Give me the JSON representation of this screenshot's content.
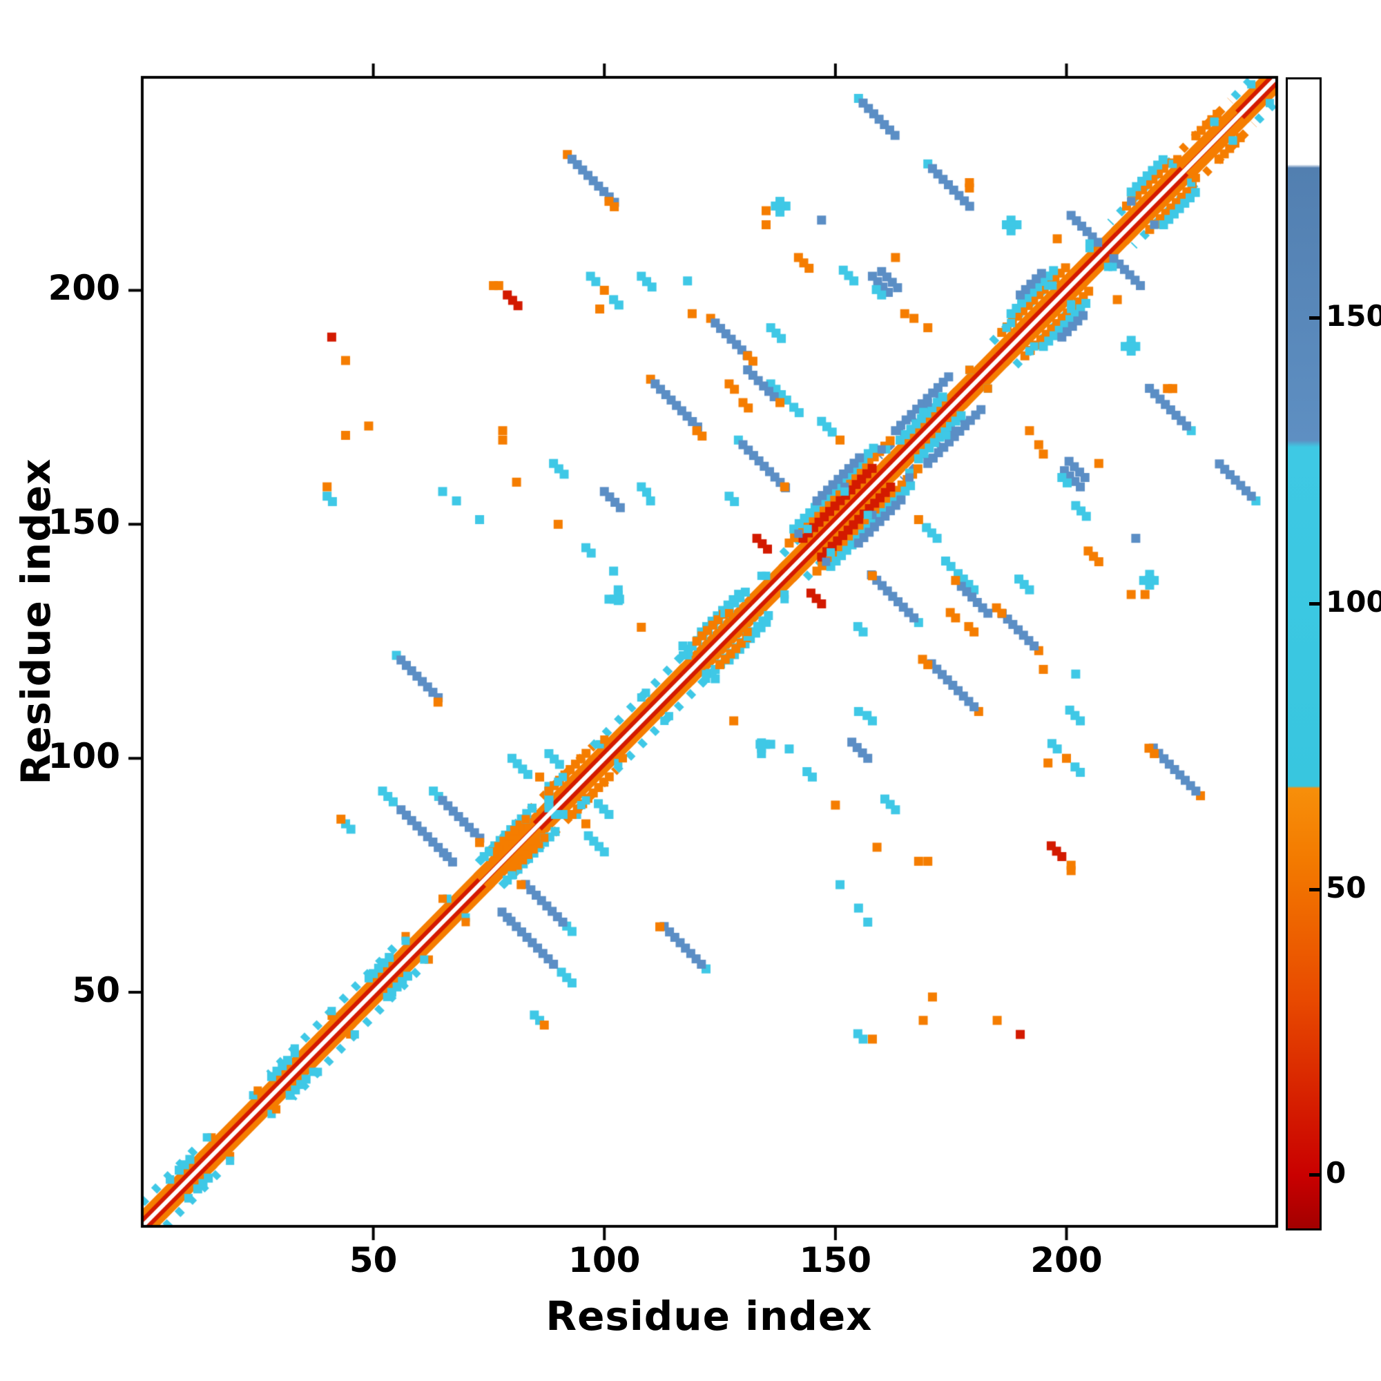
{
  "chart_data": {
    "type": "heatmap",
    "title": "",
    "xlabel": "Residue index",
    "ylabel": "Residue index",
    "x_ticks": [
      50,
      100,
      150,
      200
    ],
    "y_ticks": [
      50,
      100,
      150,
      200
    ],
    "x_range": [
      0,
      245
    ],
    "y_range": [
      0,
      245
    ],
    "grid": false,
    "symmetric": true,
    "legend_position": "right-colorbar",
    "palette": {
      "r": "#d31a00",
      "o": "#f57d00",
      "c": "#3fc8e6",
      "b": "#5b8ec5",
      "diag_center": "#ffffff"
    },
    "colorbar": {
      "ticks": [
        0,
        50,
        100,
        150
      ],
      "range": [
        -9,
        192
      ],
      "gradient_stops": [
        {
          "f": 0.0,
          "color": "#a30000"
        },
        {
          "f": 0.046,
          "color": "#c90000"
        },
        {
          "f": 0.2,
          "color": "#e84a00"
        },
        {
          "f": 0.32,
          "color": "#f37a00"
        },
        {
          "f": 0.383,
          "color": "#f78f0a"
        },
        {
          "f": 0.385,
          "color": "#38c6df"
        },
        {
          "f": 0.68,
          "color": "#3ec9e4"
        },
        {
          "f": 0.686,
          "color": "#5e8fc2"
        },
        {
          "f": 0.923,
          "color": "#527fb0"
        },
        {
          "f": 0.926,
          "color": "#ffffff"
        },
        {
          "f": 1.0,
          "color": "#ffffff"
        }
      ]
    },
    "diagonal_band": {
      "segments": [
        [
          1,
          14,
          "r",
          "o",
          "c"
        ],
        [
          14,
          30,
          "r",
          "o",
          null
        ],
        [
          30,
          44,
          "r",
          "o",
          "c"
        ],
        [
          44,
          58,
          "r",
          "o",
          "c"
        ],
        [
          58,
          74,
          "r",
          "o",
          null
        ],
        [
          74,
          86,
          "o",
          "o",
          "c"
        ],
        [
          86,
          100,
          "r",
          "o",
          "o"
        ],
        [
          100,
          118,
          "r",
          "o",
          "c"
        ],
        [
          118,
          133,
          "r",
          "o",
          "c"
        ],
        [
          133,
          140,
          "r",
          "o",
          null
        ],
        [
          140,
          162,
          "r",
          "o",
          "c"
        ],
        [
          162,
          177,
          "r",
          "o",
          "b"
        ],
        [
          177,
          186,
          "r",
          "o",
          null
        ],
        [
          186,
          202,
          "r",
          "o",
          "c"
        ],
        [
          202,
          212,
          "r",
          "o",
          null
        ],
        [
          212,
          226,
          "r",
          "o",
          "c"
        ],
        [
          226,
          238,
          "o",
          "o",
          "o"
        ],
        [
          238,
          245,
          "r",
          "o",
          "c"
        ]
      ],
      "flecks": [
        [
          6,
          4,
          "c"
        ],
        [
          10,
          -4,
          "c"
        ],
        [
          15,
          4,
          "o"
        ],
        [
          19,
          -5,
          "c"
        ],
        [
          24,
          4,
          "c"
        ],
        [
          29,
          -4,
          "o"
        ],
        [
          33,
          5,
          "c"
        ],
        [
          37,
          -4,
          "c"
        ],
        [
          41,
          4,
          "o"
        ],
        [
          46,
          -5,
          "c"
        ],
        [
          50,
          4,
          "c"
        ],
        [
          53,
          -4,
          "c"
        ],
        [
          57,
          5,
          "o"
        ],
        [
          61,
          -4,
          "c"
        ],
        [
          66,
          4,
          "c"
        ],
        [
          70,
          -5,
          "o"
        ],
        [
          75,
          5,
          "c"
        ],
        [
          79,
          -5,
          "c"
        ],
        [
          83,
          4,
          "c"
        ],
        [
          87,
          -4,
          "o"
        ],
        [
          91,
          5,
          "c"
        ],
        [
          95,
          -5,
          "c"
        ],
        [
          99,
          4,
          "c"
        ],
        [
          104,
          -4,
          "o"
        ],
        [
          109,
          5,
          "c"
        ],
        [
          113,
          -5,
          "c"
        ],
        [
          118,
          4,
          "c"
        ],
        [
          122,
          -5,
          "c"
        ],
        [
          126,
          5,
          "c"
        ],
        [
          131,
          -4,
          "o"
        ],
        [
          135,
          4,
          "c"
        ],
        [
          139,
          -5,
          "c"
        ],
        [
          144,
          5,
          "c"
        ],
        [
          148,
          -6,
          "b"
        ],
        [
          152,
          6,
          "b"
        ],
        [
          157,
          -5,
          "c"
        ],
        [
          161,
          5,
          "c"
        ],
        [
          166,
          -6,
          "b"
        ],
        [
          170,
          6,
          "b"
        ],
        [
          174,
          -5,
          "c"
        ],
        [
          179,
          4,
          "c"
        ],
        [
          183,
          -4,
          "o"
        ],
        [
          188,
          5,
          "c"
        ],
        [
          192,
          -5,
          "c"
        ],
        [
          196,
          5,
          "c"
        ],
        [
          201,
          -4,
          "c"
        ],
        [
          205,
          4,
          "c"
        ],
        [
          210,
          -5,
          "c"
        ],
        [
          214,
          5,
          "c"
        ],
        [
          219,
          -5,
          "b"
        ],
        [
          223,
          4,
          "c"
        ],
        [
          228,
          -4,
          "o"
        ],
        [
          232,
          4,
          "c"
        ],
        [
          236,
          -4,
          "c"
        ],
        [
          240,
          4,
          "c"
        ]
      ]
    },
    "contacts": [
      [
        92,
        229,
        1,
        "a",
        "o"
      ],
      [
        93,
        228,
        9,
        "a",
        "b"
      ],
      [
        101,
        219,
        2,
        "a",
        "o"
      ],
      [
        155,
        241,
        1,
        "a",
        "c"
      ],
      [
        156,
        240,
        7,
        "a",
        "b"
      ],
      [
        170,
        227,
        1,
        "a",
        "c"
      ],
      [
        171,
        226,
        8,
        "a",
        "b"
      ],
      [
        201,
        216,
        6,
        "a",
        "b"
      ],
      [
        198,
        211,
        1,
        "a",
        "o"
      ],
      [
        135,
        217,
        1,
        "a",
        "o"
      ],
      [
        135,
        214,
        1,
        "a",
        "o"
      ],
      [
        137,
        218,
        3,
        "h",
        "c"
      ],
      [
        138,
        219,
        3,
        "v",
        "c"
      ],
      [
        147,
        215,
        1,
        "a",
        "b"
      ],
      [
        163,
        207,
        1,
        "a",
        "o"
      ],
      [
        41,
        190,
        1,
        "a",
        "r"
      ],
      [
        44,
        185,
        1,
        "a",
        "o"
      ],
      [
        97,
        203,
        2,
        "a",
        "c"
      ],
      [
        100,
        200,
        1,
        "a",
        "o"
      ],
      [
        102,
        198,
        2,
        "a",
        "c"
      ],
      [
        99,
        196,
        1,
        "a",
        "o"
      ],
      [
        108,
        203,
        3,
        "a",
        "c"
      ],
      [
        118,
        202,
        1,
        "a",
        "c"
      ],
      [
        119,
        195,
        1,
        "a",
        "o"
      ],
      [
        123,
        194,
        1,
        "a",
        "o"
      ],
      [
        124,
        193,
        7,
        "a",
        "b"
      ],
      [
        131,
        186,
        2,
        "a",
        "o"
      ],
      [
        142,
        207,
        3,
        "a",
        "o"
      ],
      [
        158,
        203,
        4,
        "a",
        "b"
      ],
      [
        160,
        204,
        4,
        "a",
        "b"
      ],
      [
        136,
        192,
        3,
        "a",
        "c"
      ],
      [
        188,
        214,
        1,
        "a",
        "c"
      ],
      [
        187,
        214,
        3,
        "h",
        "c"
      ],
      [
        188,
        215,
        3,
        "v",
        "c"
      ],
      [
        179,
        223,
        2,
        "v",
        "o"
      ],
      [
        79,
        199,
        3,
        "a",
        "r"
      ],
      [
        76,
        201,
        2,
        "h",
        "o"
      ],
      [
        110,
        181,
        1,
        "a",
        "o"
      ],
      [
        111,
        180,
        9,
        "a",
        "b"
      ],
      [
        120,
        170,
        2,
        "a",
        "o"
      ],
      [
        127,
        180,
        2,
        "a",
        "o"
      ],
      [
        130,
        176,
        2,
        "a",
        "o"
      ],
      [
        136,
        180,
        4,
        "a",
        "c"
      ],
      [
        141,
        175,
        2,
        "a",
        "c"
      ],
      [
        147,
        172,
        3,
        "a",
        "c"
      ],
      [
        151,
        168,
        1,
        "a",
        "o"
      ],
      [
        78,
        170,
        1,
        "a",
        "o"
      ],
      [
        78,
        168,
        1,
        "a",
        "o"
      ],
      [
        73,
        151,
        1,
        "a",
        "c"
      ],
      [
        65,
        157,
        1,
        "a",
        "c"
      ],
      [
        68,
        155,
        1,
        "a",
        "c"
      ],
      [
        81,
        159,
        1,
        "a",
        "o"
      ],
      [
        89,
        163,
        3,
        "a",
        "c"
      ],
      [
        129,
        168,
        1,
        "a",
        "c"
      ],
      [
        130,
        167,
        9,
        "a",
        "b"
      ],
      [
        139,
        158,
        1,
        "a",
        "o"
      ],
      [
        131,
        183,
        6,
        "a",
        "b"
      ],
      [
        138,
        176,
        1,
        "a",
        "o"
      ],
      [
        155,
        160,
        1,
        "a",
        "o"
      ],
      [
        133,
        147,
        3,
        "a",
        "r"
      ],
      [
        108,
        158,
        2,
        "a",
        "c"
      ],
      [
        110,
        155,
        1,
        "a",
        "c"
      ],
      [
        102,
        140,
        1,
        "a",
        "c"
      ],
      [
        96,
        145,
        2,
        "a",
        "c"
      ],
      [
        90,
        150,
        1,
        "a",
        "o"
      ],
      [
        103,
        136,
        3,
        "v",
        "c"
      ],
      [
        101,
        134,
        3,
        "h",
        "c"
      ],
      [
        40,
        158,
        1,
        "a",
        "o"
      ],
      [
        40,
        156,
        2,
        "a",
        "c"
      ],
      [
        44,
        169,
        1,
        "a",
        "o"
      ],
      [
        49,
        171,
        1,
        "a",
        "o"
      ],
      [
        55,
        122,
        1,
        "a",
        "c"
      ],
      [
        56,
        121,
        8,
        "a",
        "b"
      ],
      [
        64,
        112,
        1,
        "a",
        "o"
      ],
      [
        52,
        93,
        3,
        "a",
        "c"
      ],
      [
        56,
        89,
        9,
        "a",
        "b"
      ],
      [
        66,
        79,
        2,
        "a",
        "b"
      ],
      [
        44,
        86,
        2,
        "a",
        "c"
      ],
      [
        43,
        87,
        1,
        "a",
        "o"
      ],
      [
        63,
        93,
        2,
        "a",
        "c"
      ],
      [
        65,
        91,
        8,
        "a",
        "b"
      ],
      [
        73,
        82,
        1,
        "a",
        "o"
      ],
      [
        80,
        100,
        4,
        "a",
        "c"
      ],
      [
        88,
        101,
        3,
        "a",
        "c"
      ],
      [
        88,
        94,
        5,
        "v",
        "c"
      ],
      [
        86,
        96,
        1,
        "a",
        "o"
      ],
      [
        192,
        170,
        1,
        "a",
        "o"
      ],
      [
        194,
        167,
        1,
        "a",
        "o"
      ],
      [
        195,
        165,
        1,
        "a",
        "o"
      ],
      [
        199,
        160,
        2,
        "a",
        "c"
      ],
      [
        202,
        154,
        3,
        "a",
        "c"
      ],
      [
        100,
        157,
        4,
        "a",
        "b"
      ],
      [
        108,
        128,
        1,
        "a",
        "o"
      ],
      [
        127,
        156,
        2,
        "a",
        "c"
      ],
      [
        117,
        124,
        2,
        "a",
        "c"
      ],
      [
        119,
        124,
        11,
        "p",
        "c"
      ],
      [
        121,
        127,
        8,
        "p",
        "c"
      ],
      [
        120,
        125,
        6,
        "p",
        "o"
      ],
      [
        140,
        146,
        20,
        "p",
        "o"
      ],
      [
        141,
        149,
        16,
        "p",
        "c"
      ],
      [
        146,
        155,
        9,
        "p",
        "b"
      ],
      [
        143,
        147,
        14,
        "p",
        "r"
      ],
      [
        163,
        170,
        11,
        "p",
        "b"
      ],
      [
        164,
        168,
        9,
        "p",
        "c"
      ],
      [
        186,
        191,
        13,
        "p",
        "o"
      ],
      [
        188,
        195,
        9,
        "p",
        "c"
      ],
      [
        213,
        218,
        9,
        "p",
        "o"
      ],
      [
        214,
        221,
        7,
        "p",
        "c"
      ],
      [
        228,
        233,
        5,
        "p",
        "o"
      ],
      [
        74,
        79,
        10,
        "p",
        "c"
      ],
      [
        76,
        80,
        6,
        "p",
        "o"
      ],
      [
        88,
        93,
        8,
        "p",
        "o"
      ],
      [
        50,
        54,
        4,
        "p",
        "c"
      ],
      [
        28,
        32,
        4,
        "p",
        "c"
      ],
      [
        8,
        12,
        3,
        "p",
        "c"
      ],
      [
        190,
        199,
        5,
        "p",
        "b"
      ]
    ]
  }
}
